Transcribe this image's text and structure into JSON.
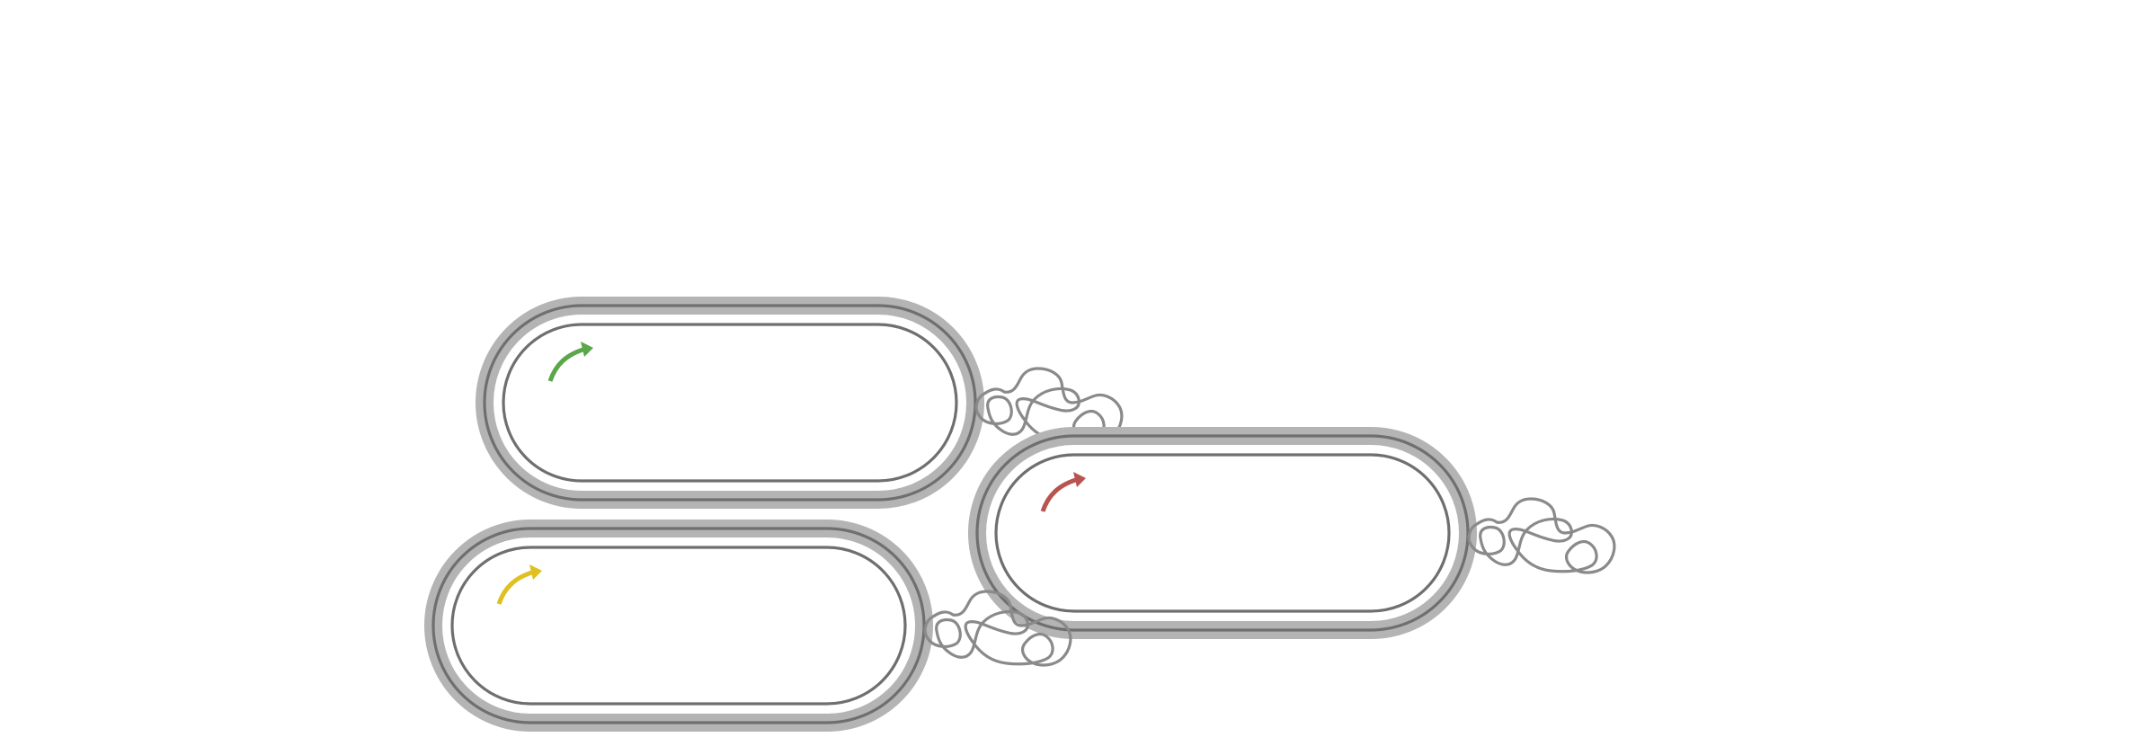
{
  "diagram": {
    "cells": [
      {
        "id": "cell-green",
        "plasmid_color": "#5aa64a",
        "wall_color": "#6f6f6f",
        "layer_color": "#b4b4b4",
        "dna_color": "#8a8a8a"
      },
      {
        "id": "cell-red",
        "plasmid_color": "#b85450",
        "wall_color": "#6f6f6f",
        "layer_color": "#b4b4b4",
        "dna_color": "#8a8a8a"
      },
      {
        "id": "cell-yellow",
        "plasmid_color": "#e0c021",
        "wall_color": "#6f6f6f",
        "layer_color": "#b4b4b4",
        "dna_color": "#8a8a8a"
      }
    ]
  }
}
